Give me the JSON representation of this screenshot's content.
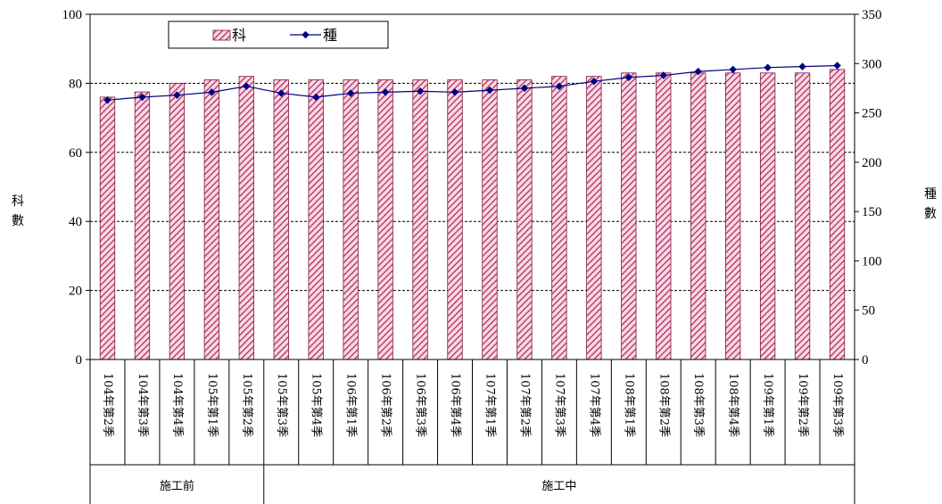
{
  "chart_data": {
    "type": "bar+line",
    "categories": [
      "104年第2季",
      "104年第3季",
      "104年第4季",
      "105年第1季",
      "105年第2季",
      "105年第3季",
      "105年第4季",
      "106年第1季",
      "106年第2季",
      "106年第3季",
      "106年第4季",
      "107年第1季",
      "107年第2季",
      "107年第3季",
      "107年第4季",
      "108年第1季",
      "108年第2季",
      "108年第3季",
      "108年第4季",
      "109年第1季",
      "109年第2季",
      "109年第3季"
    ],
    "groups": [
      {
        "label": "施工前",
        "count": 5
      },
      {
        "label": "施工中",
        "count": 17
      }
    ],
    "series": [
      {
        "name": "科",
        "kind": "bar",
        "axis": "left",
        "color": "#b03060",
        "values": [
          76,
          77.5,
          80,
          81,
          82,
          81,
          81,
          81,
          81,
          81,
          81,
          81,
          81,
          82,
          82,
          83,
          83,
          83,
          83,
          83,
          83,
          84
        ]
      },
      {
        "name": "種",
        "kind": "line",
        "axis": "right",
        "color": "#000080",
        "values": [
          263,
          266,
          268,
          271,
          277,
          270,
          266,
          270,
          271,
          272,
          271,
          273,
          275,
          277,
          282,
          286,
          288,
          292,
          294,
          296,
          297,
          298
        ]
      }
    ],
    "y_left": {
      "label": "科數",
      "min": 0,
      "max": 100,
      "ticks": [
        0,
        20,
        40,
        60,
        80,
        100
      ]
    },
    "y_right": {
      "label": "種數",
      "min": 0,
      "max": 350,
      "ticks": [
        0,
        50,
        100,
        150,
        200,
        250,
        300,
        350
      ]
    },
    "legend_position": "top-left",
    "grid": "dashed-horizontal"
  }
}
